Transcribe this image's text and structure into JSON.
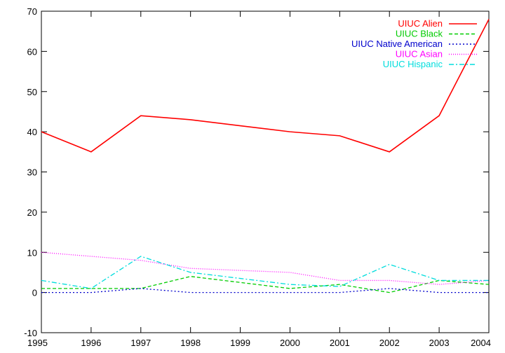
{
  "chart_data": {
    "type": "line",
    "title": "",
    "xlabel": "",
    "ylabel": "",
    "x": [
      1995,
      1996,
      1997,
      1998,
      1999,
      2000,
      2001,
      2002,
      2003,
      2004
    ],
    "xlim": [
      1995,
      2004
    ],
    "ylim": [
      -10,
      70
    ],
    "yticks": [
      -10,
      0,
      10,
      20,
      30,
      40,
      50,
      60,
      70
    ],
    "xticks": [
      1995,
      1996,
      1997,
      1998,
      1999,
      2000,
      2001,
      2002,
      2003,
      2004
    ],
    "grid": false,
    "legend_position": "top-right",
    "series": [
      {
        "name": "UIUC Alien",
        "color": "#ff0000",
        "dash": "solid",
        "values": [
          40,
          35,
          44,
          43,
          41.5,
          40,
          39,
          35,
          44,
          68
        ]
      },
      {
        "name": "UIUC Black",
        "color": "#00cc00",
        "dash": "dashed",
        "values": [
          1,
          1,
          1,
          4,
          2.5,
          1,
          2,
          0,
          3,
          2
        ]
      },
      {
        "name": "UIUC Native American",
        "color": "#0000cc",
        "dash": "dotted",
        "values": [
          0,
          0,
          1,
          0,
          0,
          0,
          0,
          1,
          0,
          0
        ]
      },
      {
        "name": "UIUC Asian",
        "color": "#ff00ff",
        "dash": "fine-dotted",
        "values": [
          10,
          9,
          8,
          6,
          5.5,
          5,
          3,
          3,
          2,
          3
        ]
      },
      {
        "name": "UIUC Hispanic",
        "color": "#00dddd",
        "dash": "dash-dot",
        "values": [
          3,
          1,
          9,
          5,
          3.5,
          2,
          1.5,
          7,
          3,
          3
        ]
      }
    ]
  }
}
